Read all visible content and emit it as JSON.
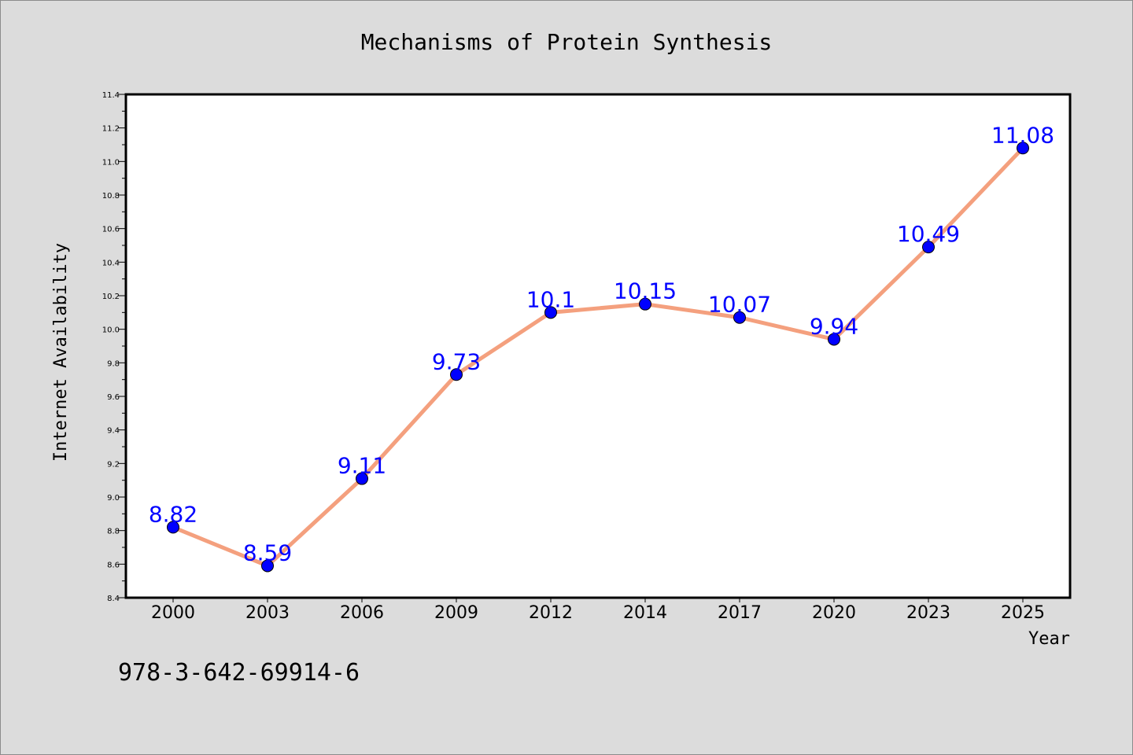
{
  "chart_data": {
    "type": "line",
    "title": "Mechanisms of Protein Synthesis",
    "xlabel": "Year",
    "ylabel": "Internet Availability",
    "categories": [
      "2000",
      "2003",
      "2006",
      "2009",
      "2012",
      "2014",
      "2017",
      "2020",
      "2023",
      "2025"
    ],
    "series": [
      {
        "values": [
          8.82,
          8.59,
          9.11,
          9.73,
          10.1,
          10.15,
          10.07,
          9.94,
          10.49,
          11.08
        ],
        "data_labels": [
          "8.82",
          "8.59",
          "9.11",
          "9.73",
          "10.1",
          "10.15",
          "10.07",
          "9.94",
          "10.49",
          "11.08"
        ]
      }
    ],
    "ylim": [
      8.4,
      11.4
    ],
    "yticks": [
      "8.4",
      "8.6",
      "8.8",
      "9.0",
      "9.2",
      "9.4",
      "9.6",
      "9.8",
      "10.0",
      "10.2",
      "10.4",
      "10.6",
      "10.8",
      "11.0",
      "11.2",
      "11.4"
    ],
    "grid": false,
    "legend": "none",
    "colors": {
      "line": "#f4a07e",
      "marker": "#0000ff",
      "data_label": "#0000ff",
      "background": "#dcdcdc",
      "plot_area": "#ffffff"
    }
  },
  "footer": {
    "isbn": "978-3-642-69914-6"
  }
}
